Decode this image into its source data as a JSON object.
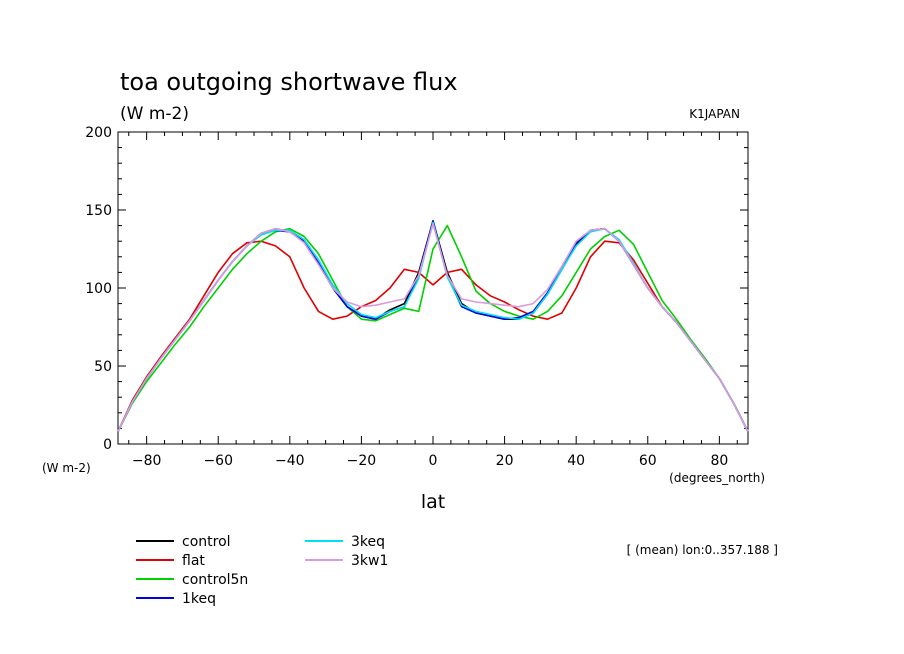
{
  "chart_data": {
    "type": "line",
    "title": "toa outgoing shortwave flux",
    "subtitle": "(W m-2)",
    "source_label": "K1JAPAN",
    "ylabel_units": "(W m-2)",
    "xlabel": "lat",
    "x_units": "(degrees_north)",
    "note": "[ (mean) lon:0..357.188 ]",
    "xlim": [
      -88,
      88
    ],
    "ylim": [
      0,
      200
    ],
    "xticks": [
      -80,
      -60,
      -40,
      -20,
      0,
      20,
      40,
      60,
      80
    ],
    "yticks": [
      0,
      50,
      100,
      150,
      200
    ],
    "x": [
      -88,
      -84,
      -80,
      -76,
      -72,
      -68,
      -64,
      -60,
      -56,
      -52,
      -48,
      -44,
      -40,
      -36,
      -32,
      -28,
      -24,
      -20,
      -16,
      -12,
      -8,
      -4,
      0,
      4,
      8,
      12,
      16,
      20,
      24,
      28,
      32,
      36,
      40,
      44,
      48,
      52,
      56,
      60,
      64,
      68,
      72,
      76,
      80,
      84,
      88
    ],
    "series": [
      {
        "name": "control",
        "color": "#000000",
        "values": [
          8,
          27,
          42,
          55,
          67,
          79,
          92,
          105,
          117,
          127,
          135,
          138,
          136,
          130,
          116,
          100,
          88,
          82,
          80,
          86,
          90,
          110,
          143,
          110,
          90,
          84,
          82,
          80,
          80,
          84,
          96,
          112,
          128,
          137,
          138,
          130,
          115,
          100,
          88,
          78,
          66,
          54,
          42,
          26,
          8
        ]
      },
      {
        "name": "flat",
        "color": "#e00000",
        "values": [
          8,
          28,
          43,
          56,
          68,
          80,
          95,
          110,
          122,
          129,
          130,
          127,
          120,
          100,
          85,
          80,
          82,
          88,
          92,
          100,
          112,
          110,
          102,
          110,
          112,
          102,
          95,
          91,
          86,
          82,
          80,
          84,
          100,
          120,
          130,
          129,
          118,
          103,
          88,
          78,
          66,
          54,
          42,
          26,
          8
        ]
      },
      {
        "name": "control5n",
        "color": "#00d000",
        "values": [
          8,
          26,
          40,
          52,
          64,
          75,
          88,
          100,
          112,
          122,
          130,
          136,
          138,
          133,
          122,
          105,
          88,
          80,
          79,
          83,
          87,
          85,
          125,
          140,
          120,
          98,
          90,
          85,
          82,
          80,
          85,
          95,
          110,
          125,
          133,
          137,
          128,
          110,
          92,
          80,
          67,
          55,
          42,
          26,
          8
        ]
      },
      {
        "name": "1keq",
        "color": "#0000e0",
        "values": [
          8,
          27,
          42,
          55,
          67,
          79,
          92,
          105,
          117,
          127,
          135,
          137,
          136,
          130,
          116,
          100,
          88,
          82,
          80,
          85,
          88,
          108,
          143,
          108,
          88,
          84,
          82,
          80,
          81,
          85,
          97,
          113,
          129,
          137,
          138,
          130,
          115,
          100,
          88,
          78,
          66,
          54,
          42,
          26,
          8
        ]
      },
      {
        "name": "3keq",
        "color": "#00e0f0",
        "values": [
          8,
          27,
          42,
          55,
          67,
          79,
          92,
          105,
          117,
          127,
          134,
          137,
          137,
          131,
          118,
          102,
          90,
          83,
          81,
          85,
          88,
          106,
          142,
          107,
          89,
          85,
          83,
          81,
          80,
          84,
          96,
          112,
          127,
          136,
          138,
          131,
          116,
          100,
          88,
          78,
          66,
          54,
          42,
          26,
          8
        ]
      },
      {
        "name": "3kw1",
        "color": "#dd99dd",
        "values": [
          8,
          27,
          42,
          55,
          67,
          79,
          92,
          105,
          117,
          127,
          135,
          138,
          136,
          129,
          115,
          100,
          91,
          88,
          89,
          91,
          93,
          108,
          141,
          108,
          93,
          91,
          90,
          89,
          88,
          90,
          99,
          114,
          130,
          137,
          138,
          130,
          115,
          100,
          88,
          78,
          66,
          54,
          42,
          26,
          8
        ]
      }
    ]
  }
}
